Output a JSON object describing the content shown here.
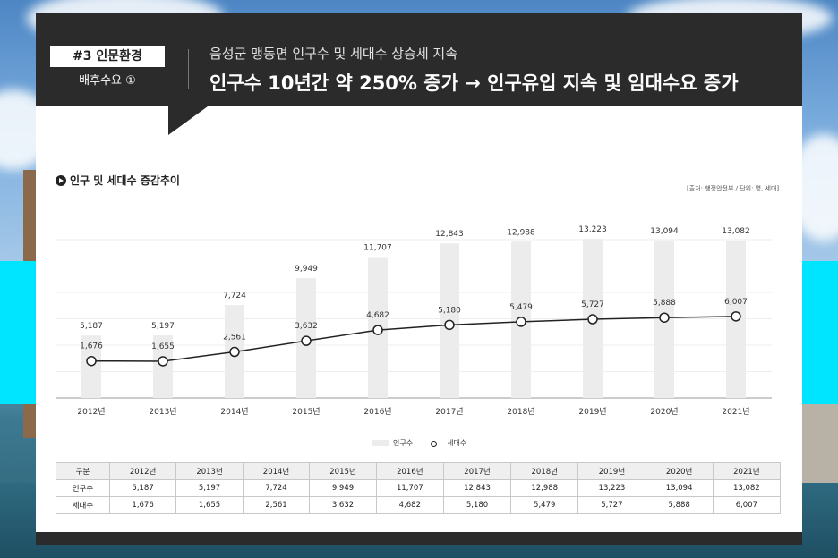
{
  "header": {
    "tag": "#3 인문환경",
    "tag_sub": "배후수요 ①",
    "subtitle": "음성군 맹동면 인구수 및 세대수 상승세 지속",
    "title": "인구수 10년간 약 250% 증가 → 인구유입 지속 및 임대수요 증가"
  },
  "section": {
    "title": "인구 및 세대수 증감추이",
    "source": "[출처: 행정안전부 / 단위: 명, 세대]"
  },
  "legend": {
    "bar_label": "인구수",
    "line_label": "세대수"
  },
  "colors": {
    "header_bg": "#2b2b2b",
    "bar": "#ececec",
    "line": "#222222",
    "accent_bg": "#00e5ff"
  },
  "chart_data": {
    "type": "bar",
    "categories": [
      "2012년",
      "2013년",
      "2014년",
      "2015년",
      "2016년",
      "2017년",
      "2018년",
      "2019년",
      "2020년",
      "2021년"
    ],
    "series": [
      {
        "name": "인구수",
        "type": "bar",
        "values": [
          5187,
          5197,
          7724,
          9949,
          11707,
          12843,
          12988,
          13223,
          13094,
          13082
        ],
        "labels": [
          "5,187",
          "5,197",
          "7,724",
          "9,949",
          "11,707",
          "12,843",
          "12,988",
          "13,223",
          "13,094",
          "13,082"
        ]
      },
      {
        "name": "세대수",
        "type": "line",
        "values": [
          1676,
          1655,
          2561,
          3632,
          4682,
          5180,
          5479,
          5727,
          5888,
          6007
        ],
        "labels": [
          "1,676",
          "1,655",
          "2,561",
          "3,632",
          "4,682",
          "5,180",
          "5,479",
          "5,727",
          "5,888",
          "6,007"
        ]
      }
    ],
    "grid": true,
    "legend_position": "bottom-center"
  },
  "table": {
    "header": [
      "구분",
      "2012년",
      "2013년",
      "2014년",
      "2015년",
      "2016년",
      "2017년",
      "2018년",
      "2019년",
      "2020년",
      "2021년"
    ],
    "rows": [
      [
        "인구수",
        "5,187",
        "5,197",
        "7,724",
        "9,949",
        "11,707",
        "12,843",
        "12,988",
        "13,223",
        "13,094",
        "13,082"
      ],
      [
        "세대수",
        "1,676",
        "1,655",
        "2,561",
        "3,632",
        "4,682",
        "5,180",
        "5,479",
        "5,727",
        "5,888",
        "6,007"
      ]
    ]
  }
}
